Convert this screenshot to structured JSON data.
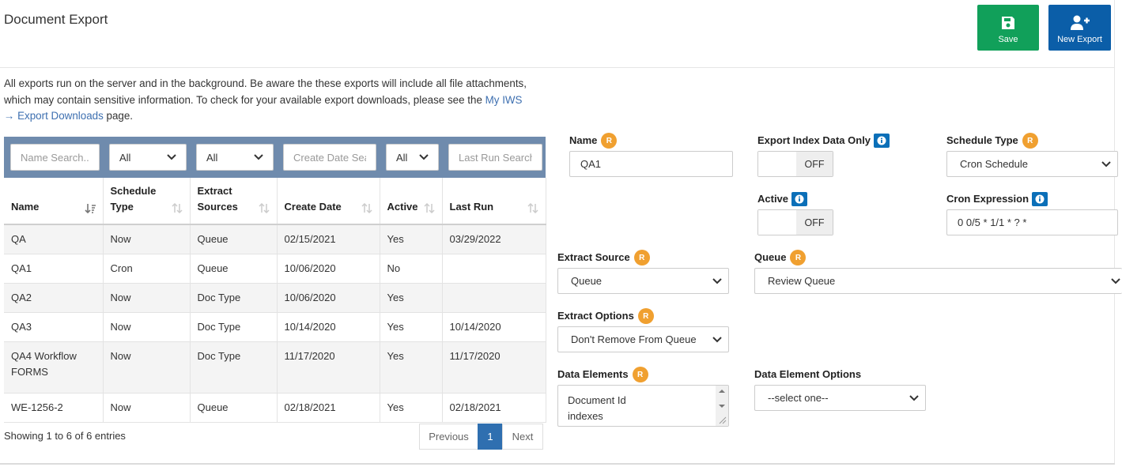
{
  "header": {
    "title": "Document Export",
    "buttons": [
      {
        "label": "Save"
      },
      {
        "label": "New Export"
      }
    ]
  },
  "intro": {
    "text_before": "All exports run on the server and in the background. Be aware the these exports will include all file attachments, which may contain sensitive information. To check for your available export downloads, please see the ",
    "link": "My IWS → Export Downloads",
    "text_after": " page."
  },
  "table": {
    "filters": [
      "Name Search...",
      "All",
      "All",
      "Create Date Search",
      "All",
      "Last Run Search"
    ],
    "columns": [
      "Name",
      "Schedule Type",
      "Extract Sources",
      "Create Date",
      "Active",
      "Last Run"
    ],
    "rows": [
      [
        "QA",
        "Now",
        "Queue",
        "02/15/2021",
        "Yes",
        "03/29/2022"
      ],
      [
        "QA1",
        "Cron",
        "Queue",
        "10/06/2020",
        "No",
        ""
      ],
      [
        "QA2",
        "Now",
        "Doc Type",
        "10/06/2020",
        "Yes",
        ""
      ],
      [
        "QA3",
        "Now",
        "Doc Type",
        "10/14/2020",
        "Yes",
        "10/14/2020"
      ],
      [
        "QA4 Workflow FORMS",
        "Now",
        "Doc Type",
        "11/17/2020",
        "Yes",
        "11/17/2020"
      ],
      [
        "WE-1256-2",
        "Now",
        "Queue",
        "02/18/2021",
        "Yes",
        "02/18/2021"
      ]
    ],
    "info": "Showing 1 to 6 of 6 entries",
    "pagination": [
      "Previous",
      "1",
      "Next"
    ]
  },
  "form": {
    "fields": [
      {
        "label": "Name",
        "badge": "R",
        "value": "QA1"
      },
      {
        "label": "Export Index Data Only",
        "value": "OFF"
      },
      {
        "label": "Schedule Type",
        "badge": "R",
        "value": "Cron Schedule"
      },
      {
        "label": "Active",
        "value": "OFF"
      },
      {
        "label": "Cron Expression",
        "value": "0 0/5 * 1/1 * ? *"
      },
      {
        "label": "Extract Source",
        "badge": "R",
        "value": "Queue"
      },
      {
        "label": "Queue",
        "badge": "R",
        "value": "Review Queue"
      },
      {
        "label": "Extract Options",
        "badge": "R",
        "value": "Don't Remove From Queue"
      },
      {
        "label": "Data Elements",
        "badge": "R",
        "values": [
          "Document Id",
          "indexes"
        ]
      },
      {
        "label": "Data Element Options",
        "value": "--select one--"
      }
    ]
  }
}
